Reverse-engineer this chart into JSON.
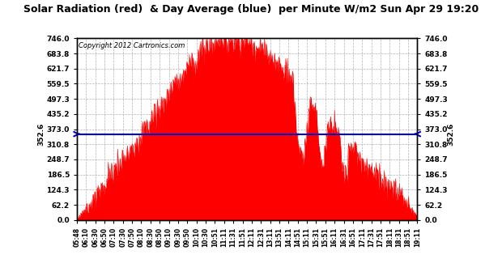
{
  "title": "Solar Radiation (red)  & Day Average (blue)  per Minute W/m2 Sun Apr 29 19:20",
  "copyright": "Copyright 2012 Cartronics.com",
  "avg_value": 352.6,
  "y_max": 746.0,
  "y_min": 0.0,
  "y_ticks": [
    0.0,
    62.2,
    124.3,
    186.5,
    248.7,
    310.8,
    373.0,
    435.2,
    497.3,
    559.5,
    621.7,
    683.8,
    746.0
  ],
  "bg_color": "#ffffff",
  "fill_color": "#ff0000",
  "line_color": "#0000cc",
  "grid_color": "#aaaaaa",
  "title_color": "#000000",
  "copyright_color": "#000000",
  "x_tick_labels": [
    "05:48",
    "06:10",
    "06:30",
    "06:50",
    "07:10",
    "07:30",
    "07:50",
    "08:10",
    "08:30",
    "08:50",
    "09:10",
    "09:30",
    "09:50",
    "10:10",
    "10:30",
    "10:51",
    "11:11",
    "11:31",
    "11:51",
    "12:11",
    "12:31",
    "13:11",
    "13:51",
    "14:11",
    "14:51",
    "15:11",
    "15:31",
    "15:51",
    "16:11",
    "16:31",
    "16:51",
    "17:11",
    "17:31",
    "17:51",
    "18:11",
    "18:31",
    "18:51",
    "19:11"
  ]
}
